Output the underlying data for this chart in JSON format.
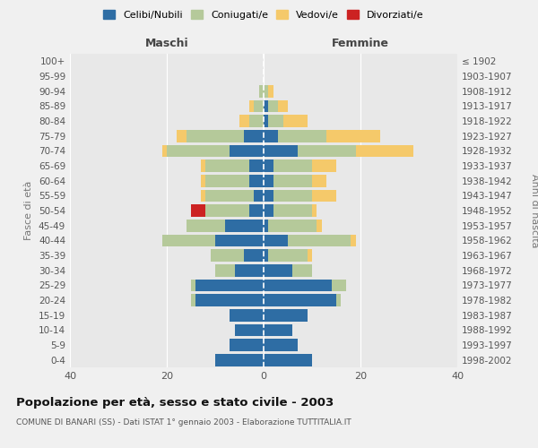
{
  "age_groups": [
    "0-4",
    "5-9",
    "10-14",
    "15-19",
    "20-24",
    "25-29",
    "30-34",
    "35-39",
    "40-44",
    "45-49",
    "50-54",
    "55-59",
    "60-64",
    "65-69",
    "70-74",
    "75-79",
    "80-84",
    "85-89",
    "90-94",
    "95-99",
    "100+"
  ],
  "birth_years": [
    "1998-2002",
    "1993-1997",
    "1988-1992",
    "1983-1987",
    "1978-1982",
    "1973-1977",
    "1968-1972",
    "1963-1967",
    "1958-1962",
    "1953-1957",
    "1948-1952",
    "1943-1947",
    "1938-1942",
    "1933-1937",
    "1928-1932",
    "1923-1927",
    "1918-1922",
    "1913-1917",
    "1908-1912",
    "1903-1907",
    "≤ 1902"
  ],
  "maschi": {
    "celibi": [
      10,
      7,
      6,
      7,
      14,
      14,
      6,
      4,
      10,
      8,
      3,
      2,
      3,
      3,
      7,
      4,
      0,
      0,
      0,
      0,
      0
    ],
    "coniugati": [
      0,
      0,
      0,
      0,
      1,
      1,
      4,
      7,
      11,
      8,
      9,
      10,
      9,
      9,
      13,
      12,
      3,
      2,
      1,
      0,
      0
    ],
    "vedovi": [
      0,
      0,
      0,
      0,
      0,
      0,
      0,
      0,
      0,
      0,
      0,
      1,
      1,
      1,
      1,
      2,
      2,
      1,
      0,
      0,
      0
    ],
    "divorziati": [
      0,
      0,
      0,
      0,
      0,
      0,
      0,
      0,
      0,
      0,
      3,
      0,
      0,
      0,
      0,
      0,
      0,
      0,
      0,
      0,
      0
    ]
  },
  "femmine": {
    "nubili": [
      10,
      7,
      6,
      9,
      15,
      14,
      6,
      1,
      5,
      1,
      2,
      2,
      2,
      2,
      7,
      3,
      1,
      1,
      0,
      0,
      0
    ],
    "coniugate": [
      0,
      0,
      0,
      0,
      1,
      3,
      4,
      8,
      13,
      10,
      8,
      8,
      8,
      8,
      12,
      10,
      3,
      2,
      1,
      0,
      0
    ],
    "vedove": [
      0,
      0,
      0,
      0,
      0,
      0,
      0,
      1,
      1,
      1,
      1,
      5,
      3,
      5,
      12,
      11,
      5,
      2,
      1,
      0,
      0
    ],
    "divorziate": [
      0,
      0,
      0,
      0,
      0,
      0,
      0,
      0,
      0,
      0,
      0,
      0,
      0,
      0,
      0,
      0,
      0,
      0,
      0,
      0,
      0
    ]
  },
  "colors": {
    "celibi": "#2e6da4",
    "coniugati": "#b5c99a",
    "vedovi": "#f5c96a",
    "divorziati": "#cc2222"
  },
  "xlim": [
    -40,
    40
  ],
  "xticks": [
    -40,
    -20,
    0,
    20,
    40
  ],
  "xticklabels": [
    "40",
    "20",
    "0",
    "20",
    "40"
  ],
  "title": "Popolazione per età, sesso e stato civile - 2003",
  "subtitle": "COMUNE DI BANARI (SS) - Dati ISTAT 1° gennaio 2003 - Elaborazione TUTTITALIA.IT",
  "ylabel_left": "Fasce di età",
  "ylabel_right": "Anni di nascita",
  "label_maschi": "Maschi",
  "label_femmine": "Femmine",
  "legend_labels": [
    "Celibi/Nubili",
    "Coniugati/e",
    "Vedovi/e",
    "Divorziati/e"
  ],
  "bg_color": "#f0f0f0",
  "plot_bg": "#e8e8e8"
}
